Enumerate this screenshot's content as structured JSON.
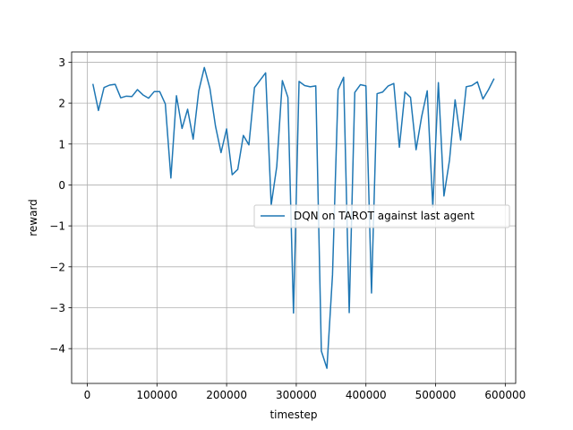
{
  "chart_data": {
    "type": "line",
    "title": "",
    "xlabel": "timestep",
    "ylabel": "reward",
    "xlim": [
      -22500,
      615000
    ],
    "ylim": [
      -4.85,
      3.25
    ],
    "xticks": [
      0,
      100000,
      200000,
      300000,
      400000,
      500000,
      600000
    ],
    "xtick_labels": [
      "0",
      "100000",
      "200000",
      "300000",
      "400000",
      "500000",
      "600000"
    ],
    "yticks": [
      -4,
      -3,
      -2,
      -1,
      0,
      1,
      2,
      3
    ],
    "ytick_labels": [
      "−4",
      "−3",
      "−2",
      "−1",
      "0",
      "1",
      "2",
      "3"
    ],
    "grid": true,
    "legend_position": "center-right",
    "series": [
      {
        "name": "DQN on TAROT against last agent",
        "color": "#1f77b4",
        "x": [
          8000,
          16000,
          24000,
          32000,
          40000,
          48000,
          56000,
          64000,
          72000,
          80000,
          88000,
          96000,
          104000,
          112000,
          120000,
          128000,
          136000,
          144000,
          152000,
          160000,
          168000,
          176000,
          184000,
          192000,
          200000,
          208000,
          216000,
          224000,
          232000,
          240000,
          248000,
          256000,
          264000,
          272000,
          280000,
          288000,
          296000,
          304000,
          312000,
          320000,
          328000,
          336000,
          344000,
          352000,
          360000,
          368000,
          376000,
          384000,
          392000,
          400000,
          408000,
          416000,
          424000,
          432000,
          440000,
          448000,
          456000,
          464000,
          472000,
          480000,
          488000,
          496000,
          504000,
          512000,
          520000,
          528000,
          536000,
          544000,
          552000,
          560000,
          568000,
          576000,
          584000
        ],
        "y": [
          2.47,
          1.82,
          2.38,
          2.44,
          2.46,
          2.13,
          2.17,
          2.16,
          2.33,
          2.2,
          2.12,
          2.28,
          2.28,
          1.98,
          0.17,
          2.18,
          1.38,
          1.85,
          1.12,
          2.3,
          2.87,
          2.36,
          1.44,
          0.79,
          1.37,
          0.25,
          0.38,
          1.21,
          0.98,
          2.38,
          2.56,
          2.74,
          -0.49,
          0.45,
          2.55,
          2.14,
          -3.13,
          2.53,
          2.43,
          2.4,
          2.42,
          -4.06,
          -4.48,
          -2.2,
          2.33,
          2.63,
          -3.12,
          2.26,
          2.45,
          2.42,
          -2.64,
          2.23,
          2.27,
          2.42,
          2.48,
          0.92,
          2.27,
          2.14,
          0.86,
          1.67,
          2.3,
          -0.54,
          2.5,
          -0.27,
          0.61,
          2.08,
          1.1,
          2.4,
          2.43,
          2.52,
          2.1,
          2.33,
          2.6
        ]
      }
    ]
  }
}
